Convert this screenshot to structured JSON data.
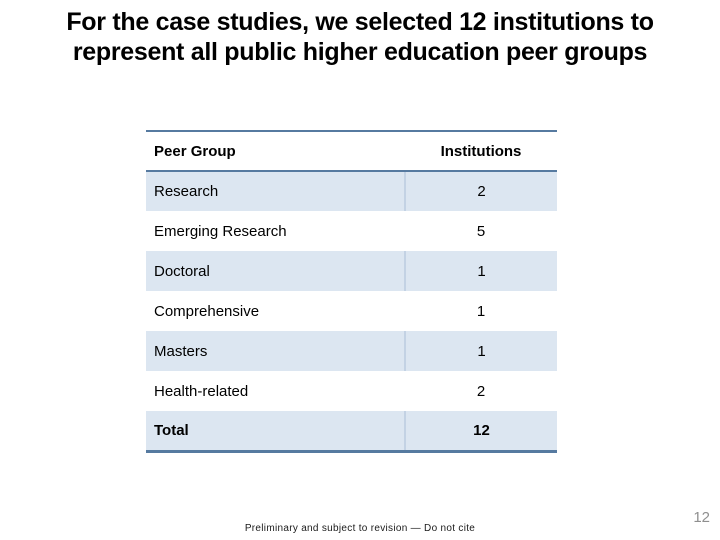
{
  "title": {
    "lines": [
      "For the case studies, we selected 12 institutions to",
      "represent all public higher education peer groups"
    ]
  },
  "table": {
    "columns": [
      "Peer Group",
      "Institutions"
    ],
    "rows": [
      {
        "label": "Research",
        "value": "2"
      },
      {
        "label": "Emerging Research",
        "value": "5"
      },
      {
        "label": "Doctoral",
        "value": "1"
      },
      {
        "label": "Comprehensive",
        "value": "1"
      },
      {
        "label": "Masters",
        "value": "1"
      },
      {
        "label": "Health-related",
        "value": "2"
      },
      {
        "label": "Total",
        "value": "12"
      }
    ]
  },
  "footer": {
    "disclaimer": "Preliminary and subject to revision — Do not cite",
    "page_number": "12"
  },
  "colors": {
    "table_border": "#567aa0",
    "row_shaded": "#dce6f1",
    "column_divider": "#c3d2e4",
    "page_number_gray": "#8f8f8f"
  }
}
